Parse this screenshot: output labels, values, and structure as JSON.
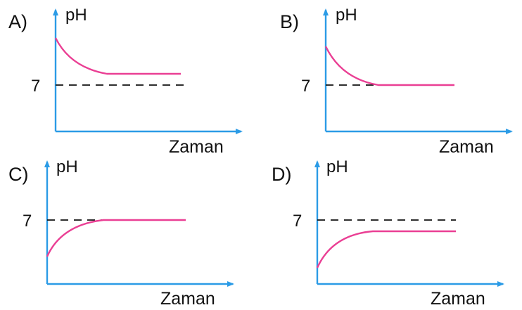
{
  "colors": {
    "axis": "#2b9be6",
    "curve": "#ea3f94",
    "dashed": "#111111",
    "text": "#111111"
  },
  "panels": [
    {
      "letter": "A)",
      "y_label": "pH",
      "x_label": "Zaman",
      "ref_label": "7"
    },
    {
      "letter": "B)",
      "y_label": "pH",
      "x_label": "Zaman",
      "ref_label": "7"
    },
    {
      "letter": "C)",
      "y_label": "pH",
      "x_label": "Zaman",
      "ref_label": "7"
    },
    {
      "letter": "D)",
      "y_label": "pH",
      "x_label": "Zaman",
      "ref_label": "7"
    }
  ]
}
